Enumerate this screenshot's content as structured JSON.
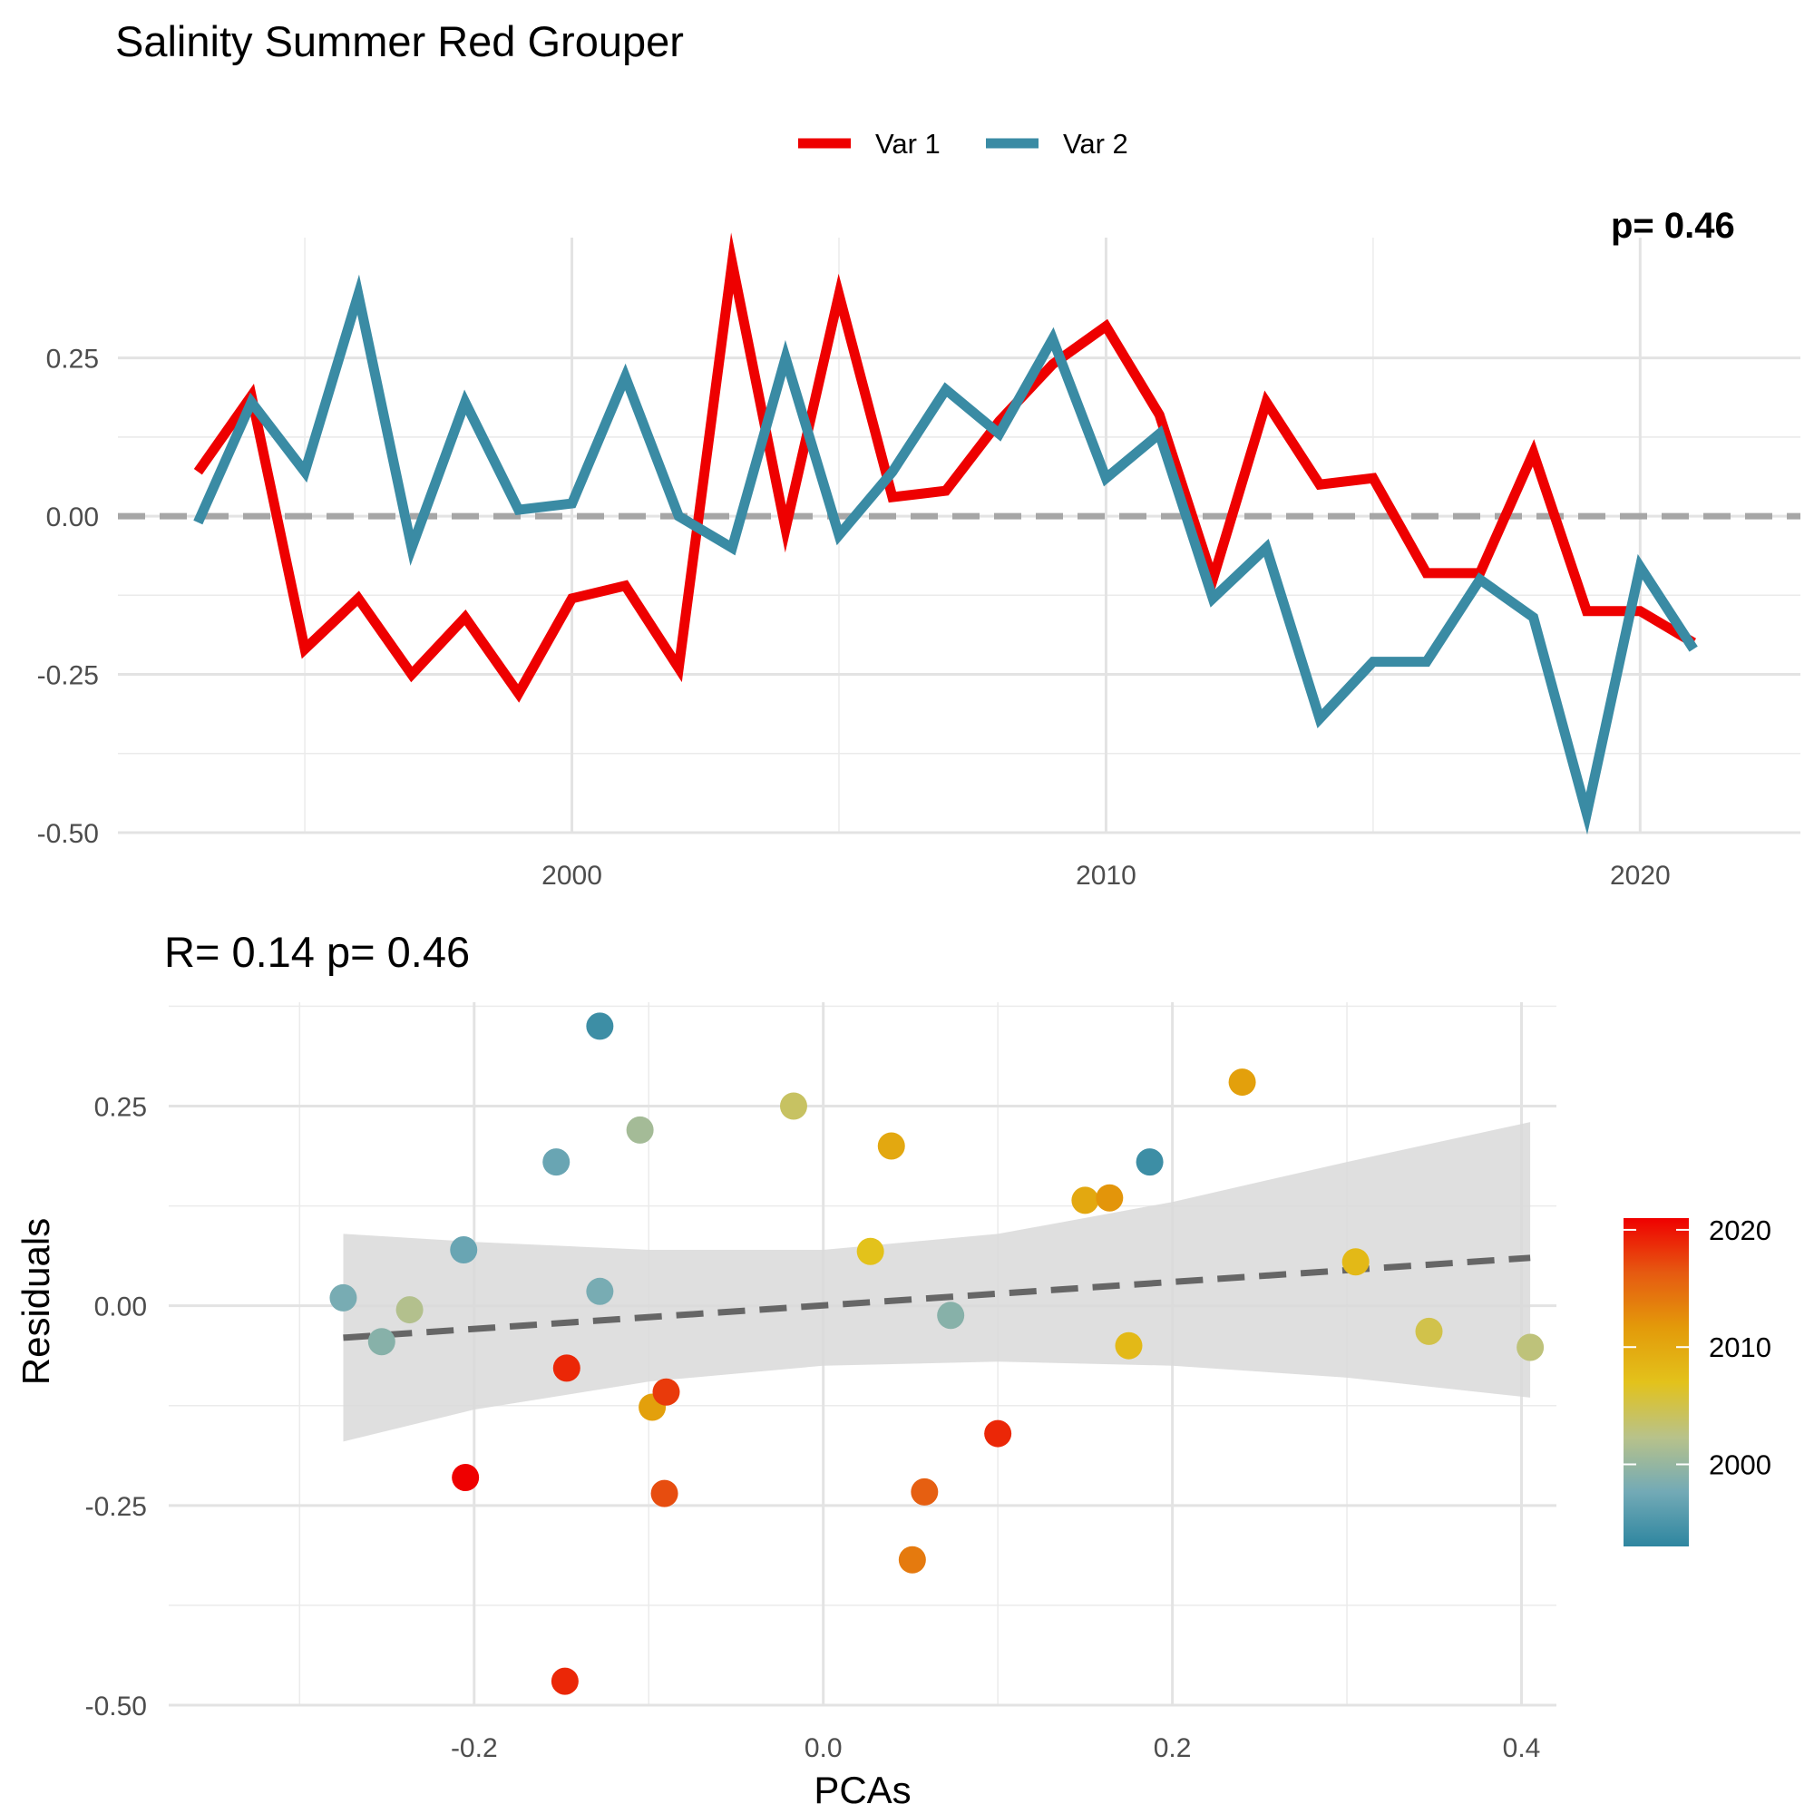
{
  "chart_data": [
    {
      "type": "line",
      "title": "Salinity Summer Red Grouper",
      "corner_annotation": "p= 0.46",
      "xlabel": "",
      "ylabel": "",
      "xlim": [
        1991.5,
        2023
      ],
      "ylim": [
        -0.5,
        0.44
      ],
      "x_ticks": [
        2000,
        2010,
        2020
      ],
      "y_ticks": [
        -0.5,
        -0.25,
        0.0,
        0.25
      ],
      "y_tick_labels": [
        "-0.50",
        "-0.25",
        "0.00",
        "0.25"
      ],
      "grid": true,
      "legend": "top-center",
      "zero_line": {
        "y": 0,
        "style": "dashed",
        "color": "#a6a6a6"
      },
      "x": [
        1993,
        1994,
        1995,
        1996,
        1997,
        1998,
        1999,
        2000,
        2001,
        2002,
        2003,
        2004,
        2005,
        2006,
        2007,
        2008,
        2009,
        2010,
        2011,
        2012,
        2013,
        2014,
        2015,
        2016,
        2017,
        2018,
        2019,
        2020,
        2021
      ],
      "series": [
        {
          "name": "Var 1",
          "color": "#ee0000",
          "values": [
            0.07,
            0.19,
            -0.21,
            -0.13,
            -0.25,
            -0.16,
            -0.28,
            -0.13,
            -0.11,
            -0.24,
            0.4,
            -0.02,
            0.35,
            0.03,
            0.04,
            0.15,
            0.24,
            0.3,
            0.16,
            -0.1,
            0.18,
            0.05,
            0.06,
            -0.09,
            -0.09,
            0.1,
            -0.15,
            -0.15,
            -0.2
          ]
        },
        {
          "name": "Var 2",
          "color": "#3a8ba4",
          "values": [
            -0.01,
            0.18,
            0.07,
            0.35,
            -0.05,
            0.18,
            0.01,
            0.02,
            0.22,
            0.0,
            -0.05,
            0.25,
            -0.03,
            0.07,
            0.2,
            0.13,
            0.28,
            0.06,
            0.13,
            -0.13,
            -0.05,
            -0.32,
            -0.23,
            -0.23,
            -0.1,
            -0.16,
            -0.47,
            -0.08,
            -0.21
          ]
        }
      ]
    },
    {
      "type": "scatter",
      "title": "R= 0.14  p= 0.46",
      "xlabel": "PCAs",
      "ylabel": "Residuals",
      "xlim": [
        -0.375,
        0.42
      ],
      "ylim": [
        -0.5,
        0.38
      ],
      "x_ticks": [
        -0.2,
        0.0,
        0.2,
        0.4
      ],
      "x_tick_labels": [
        "-0.2",
        "0.0",
        "0.2",
        "0.4"
      ],
      "y_ticks": [
        -0.5,
        -0.25,
        0.0,
        0.25
      ],
      "y_tick_labels": [
        "-0.50",
        "-0.25",
        "0.00",
        "0.25"
      ],
      "grid": true,
      "trend_line": {
        "x": [
          -0.275,
          0.405
        ],
        "y": [
          -0.04,
          0.06
        ],
        "style": "dashed",
        "color": "#666666"
      },
      "confidence_band": {
        "x": [
          -0.275,
          -0.2,
          -0.1,
          0.0,
          0.1,
          0.2,
          0.3,
          0.405
        ],
        "upper": [
          0.09,
          0.08,
          0.07,
          0.07,
          0.09,
          0.13,
          0.18,
          0.23
        ],
        "lower": [
          -0.17,
          -0.13,
          -0.095,
          -0.075,
          -0.07,
          -0.075,
          -0.09,
          -0.115
        ],
        "color": "#d9d9d9"
      },
      "colorbar": {
        "ticks": [
          2000,
          2010,
          2020
        ],
        "range": [
          1993,
          2021
        ],
        "gradient": [
          "#2e86a0",
          "#73aab6",
          "#b8c28a",
          "#e3c21b",
          "#e39a0a",
          "#e65a11",
          "#ef0000"
        ],
        "legend": "right"
      },
      "points": [
        {
          "x": -0.275,
          "y": 0.01,
          "year": 1998
        },
        {
          "x": -0.253,
          "y": -0.045,
          "year": 1999
        },
        {
          "x": -0.237,
          "y": -0.005,
          "year": 2002
        },
        {
          "x": -0.206,
          "y": 0.07,
          "year": 1997
        },
        {
          "x": -0.205,
          "y": -0.215,
          "year": 2021
        },
        {
          "x": -0.153,
          "y": 0.18,
          "year": 1997
        },
        {
          "x": -0.147,
          "y": -0.078,
          "year": 2019
        },
        {
          "x": -0.148,
          "y": -0.47,
          "year": 2019
        },
        {
          "x": -0.128,
          "y": 0.35,
          "year": 1994
        },
        {
          "x": -0.128,
          "y": 0.018,
          "year": 1998
        },
        {
          "x": -0.105,
          "y": 0.22,
          "year": 2001
        },
        {
          "x": -0.098,
          "y": -0.127,
          "year": 2011
        },
        {
          "x": -0.09,
          "y": -0.108,
          "year": 2018
        },
        {
          "x": -0.091,
          "y": -0.235,
          "year": 2017
        },
        {
          "x": -0.017,
          "y": 0.25,
          "year": 2004
        },
        {
          "x": 0.027,
          "y": 0.068,
          "year": 2007
        },
        {
          "x": 0.039,
          "y": 0.2,
          "year": 2010
        },
        {
          "x": 0.051,
          "y": -0.318,
          "year": 2014
        },
        {
          "x": 0.058,
          "y": -0.233,
          "year": 2016
        },
        {
          "x": 0.073,
          "y": -0.012,
          "year": 1999
        },
        {
          "x": 0.1,
          "y": -0.16,
          "year": 2019
        },
        {
          "x": 0.15,
          "y": 0.132,
          "year": 2010
        },
        {
          "x": 0.164,
          "y": 0.135,
          "year": 2012
        },
        {
          "x": 0.175,
          "y": -0.05,
          "year": 2008
        },
        {
          "x": 0.187,
          "y": 0.18,
          "year": 1994
        },
        {
          "x": 0.24,
          "y": 0.28,
          "year": 2011
        },
        {
          "x": 0.305,
          "y": 0.055,
          "year": 2008
        },
        {
          "x": 0.347,
          "y": -0.032,
          "year": 2005
        },
        {
          "x": 0.405,
          "y": -0.052,
          "year": 2003
        }
      ]
    }
  ]
}
